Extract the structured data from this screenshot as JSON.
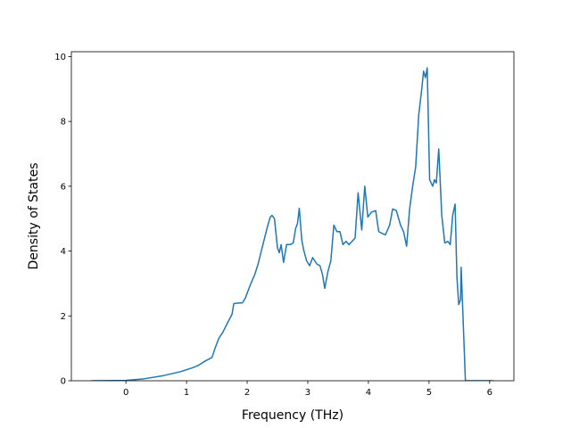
{
  "chart_data": {
    "type": "line",
    "title": "",
    "xlabel": "Frequency (THz)",
    "ylabel": "Density of States",
    "xlim": [
      -0.9,
      6.4
    ],
    "ylim": [
      0,
      10.15
    ],
    "grid": false,
    "legend": "none",
    "line_color": "#1f77b4",
    "xticks": [
      {
        "value": 0,
        "label": "0"
      },
      {
        "value": 1,
        "label": "1"
      },
      {
        "value": 2,
        "label": "2"
      },
      {
        "value": 3,
        "label": "3"
      },
      {
        "value": 4,
        "label": "4"
      },
      {
        "value": 5,
        "label": "5"
      },
      {
        "value": 6,
        "label": "6"
      }
    ],
    "yticks": [
      {
        "value": 0,
        "label": "0"
      },
      {
        "value": 2,
        "label": "2"
      },
      {
        "value": 4,
        "label": "4"
      },
      {
        "value": 6,
        "label": "6"
      },
      {
        "value": 8,
        "label": "8"
      },
      {
        "value": 10,
        "label": "10"
      }
    ],
    "series": [
      {
        "x": [
          -0.57,
          0.0,
          0.3,
          0.6,
          0.9,
          1.1,
          1.2,
          1.3,
          1.42,
          1.47,
          1.53,
          1.6,
          1.68,
          1.75,
          1.78,
          1.87,
          1.92,
          1.97,
          2.05,
          2.13,
          2.18,
          2.28,
          2.33,
          2.38,
          2.41,
          2.45,
          2.5,
          2.53,
          2.56,
          2.6,
          2.65,
          2.71,
          2.76,
          2.8,
          2.83,
          2.86,
          2.9,
          2.93,
          2.98,
          3.03,
          3.08,
          3.15,
          3.2,
          3.24,
          3.28,
          3.33,
          3.38,
          3.43,
          3.48,
          3.53,
          3.58,
          3.63,
          3.68,
          3.73,
          3.78,
          3.83,
          3.89,
          3.94,
          3.99,
          4.05,
          4.12,
          4.17,
          4.22,
          4.28,
          4.35,
          4.4,
          4.46,
          4.53,
          4.58,
          4.63,
          4.68,
          4.73,
          4.78,
          4.83,
          4.88,
          4.91,
          4.94,
          4.97,
          5.01,
          5.06,
          5.09,
          5.12,
          5.16,
          5.21,
          5.26,
          5.31,
          5.35,
          5.39,
          5.43,
          5.46,
          5.49,
          5.52,
          5.53,
          5.6,
          5.8,
          6.06
        ],
        "y": [
          0.0,
          0.01,
          0.06,
          0.15,
          0.28,
          0.4,
          0.48,
          0.6,
          0.72,
          1.0,
          1.3,
          1.5,
          1.8,
          2.05,
          2.38,
          2.4,
          2.4,
          2.55,
          2.95,
          3.3,
          3.6,
          4.35,
          4.72,
          5.05,
          5.1,
          5.0,
          4.1,
          3.95,
          4.2,
          3.65,
          4.2,
          4.2,
          4.25,
          4.7,
          4.85,
          5.32,
          4.35,
          4.05,
          3.7,
          3.55,
          3.8,
          3.6,
          3.55,
          3.3,
          2.85,
          3.35,
          3.7,
          4.8,
          4.6,
          4.6,
          4.2,
          4.3,
          4.2,
          4.3,
          4.4,
          5.8,
          4.65,
          6.0,
          5.05,
          5.2,
          5.25,
          4.6,
          4.55,
          4.5,
          4.8,
          5.3,
          5.25,
          4.8,
          4.6,
          4.15,
          5.3,
          6.0,
          6.6,
          8.2,
          9.0,
          9.55,
          9.35,
          9.65,
          6.2,
          6.0,
          6.2,
          6.1,
          7.15,
          5.1,
          4.25,
          4.3,
          4.2,
          5.1,
          5.45,
          3.2,
          2.35,
          2.5,
          3.5,
          0.0,
          0.0,
          0.0
        ]
      }
    ]
  }
}
